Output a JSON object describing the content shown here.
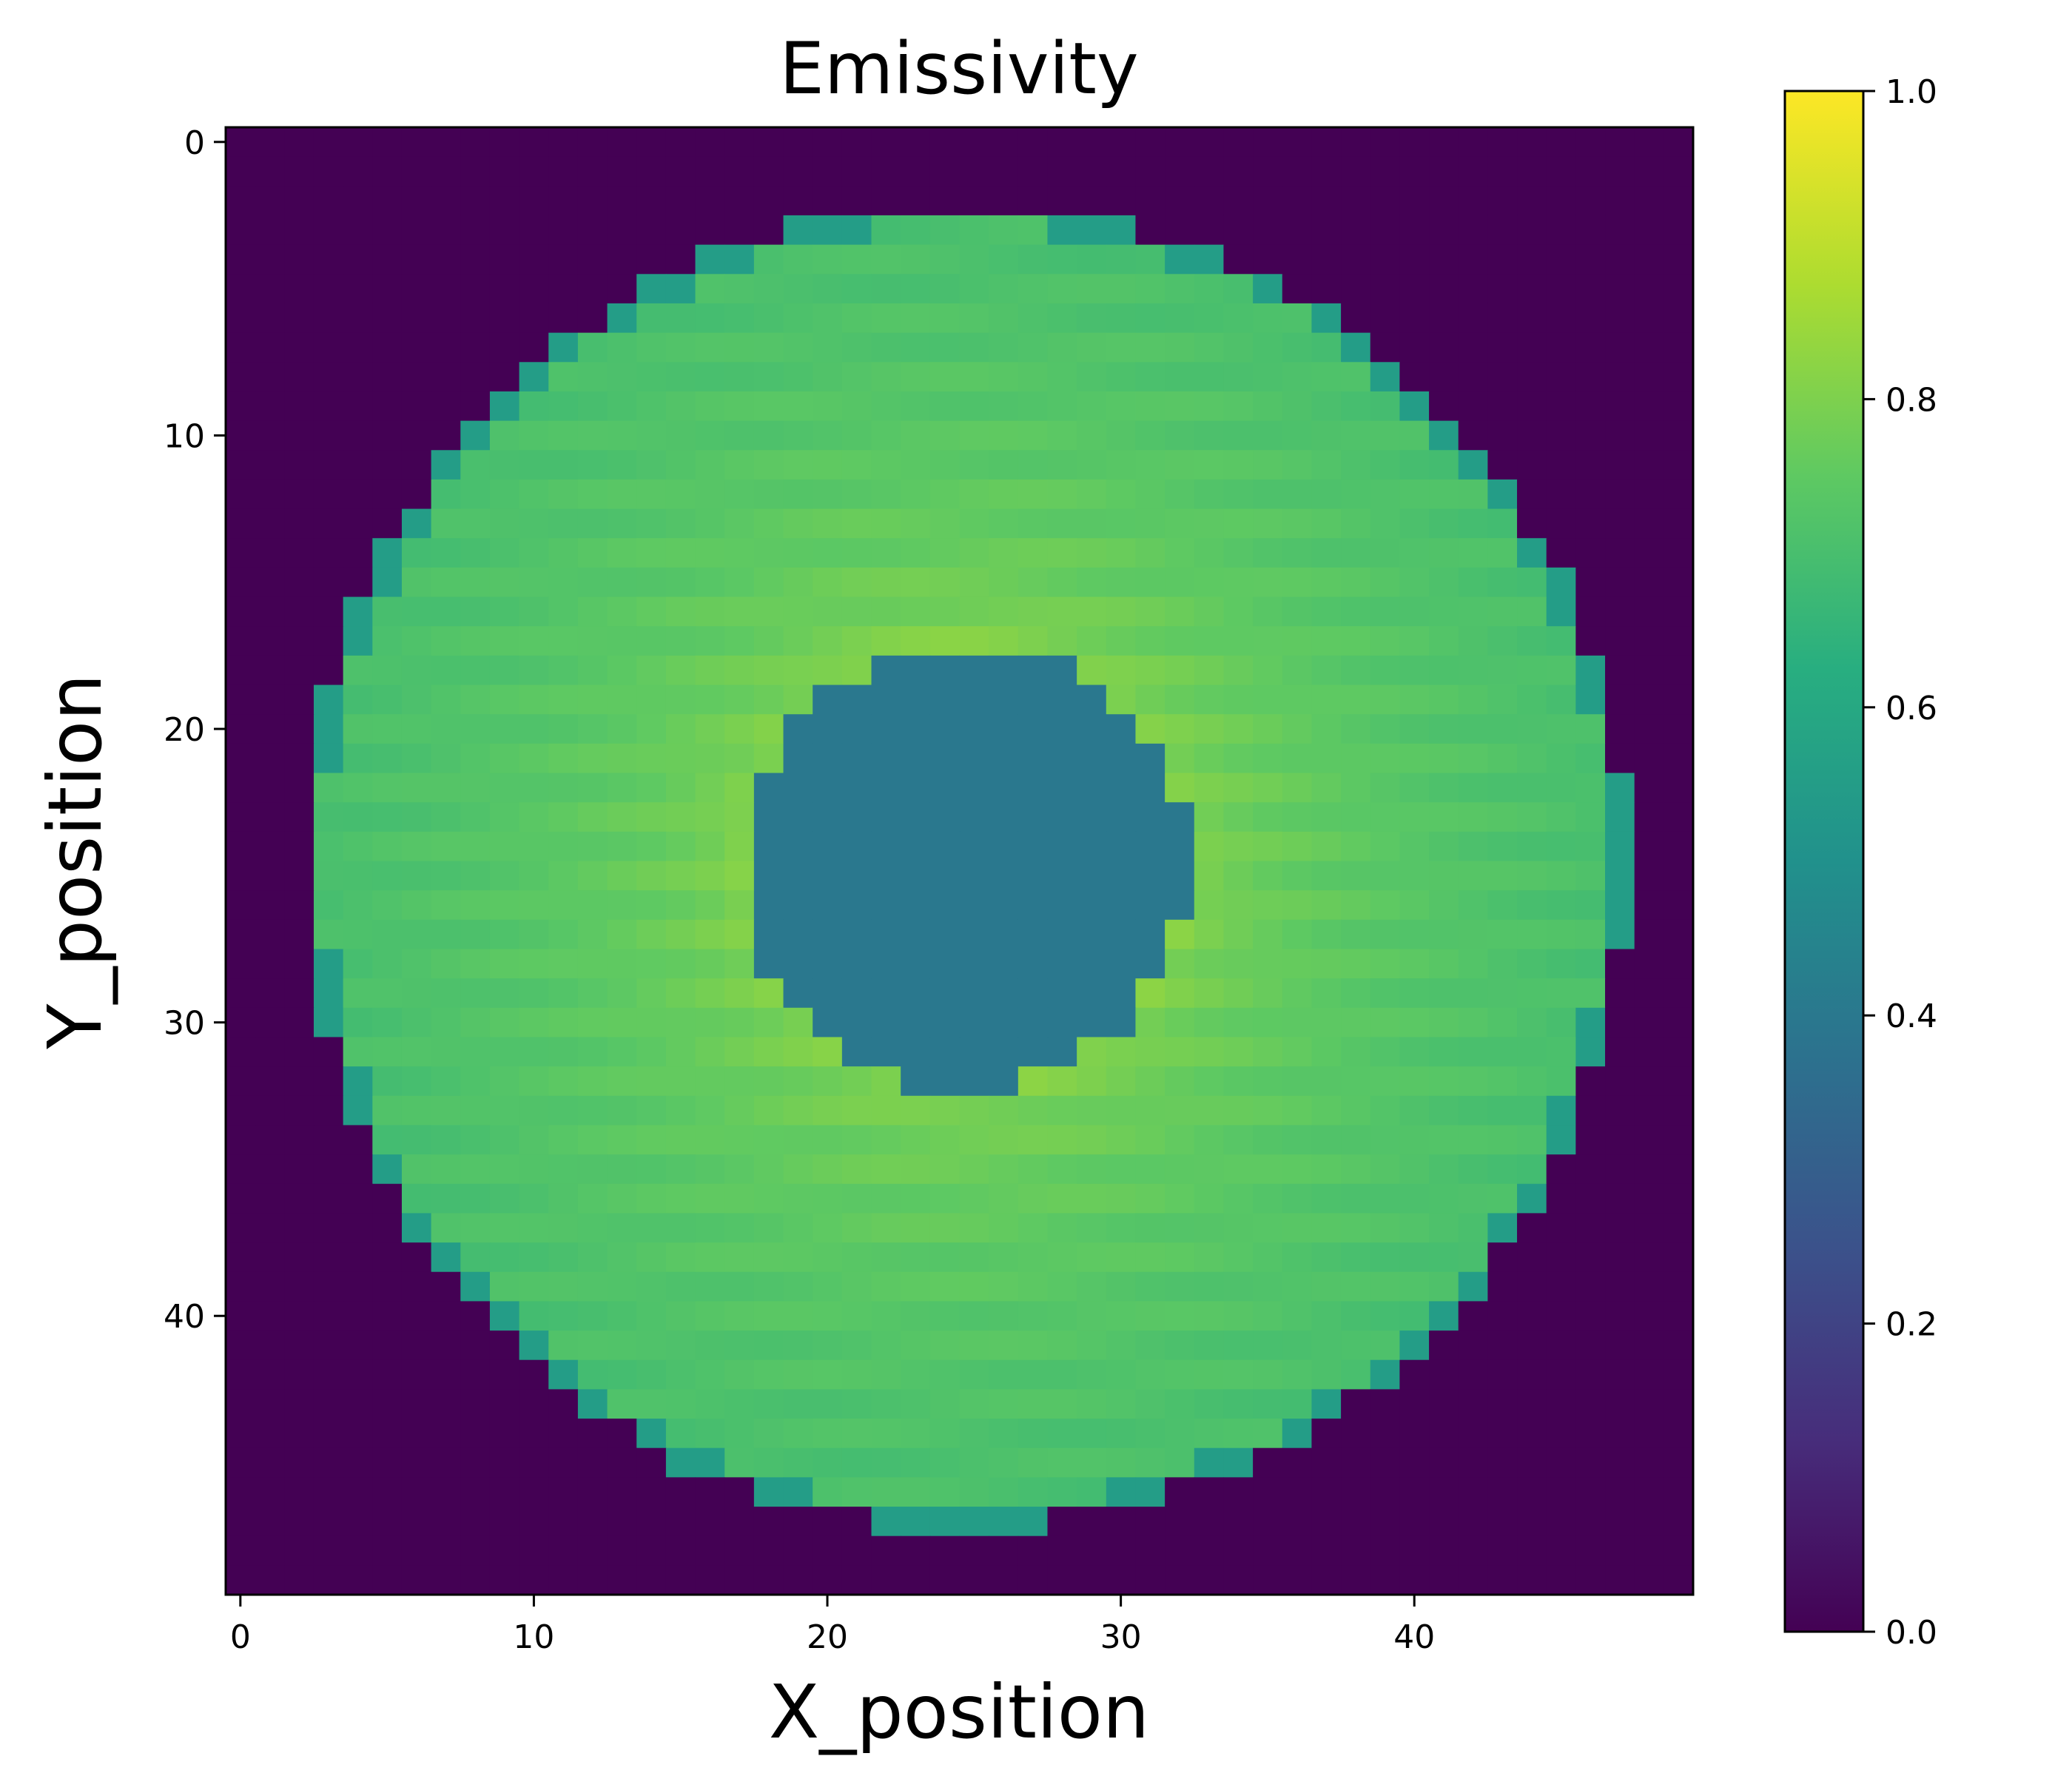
{
  "chart_data": {
    "type": "heatmap",
    "title": "Emissivity",
    "xlabel": "X_position",
    "ylabel": "Y_position",
    "grid": false,
    "legend": "colorbar-right",
    "nx": 50,
    "ny": 50,
    "xlim": [
      -0.5,
      49.5
    ],
    "ylim": [
      49.5,
      -0.5
    ],
    "x_ticks": [
      0,
      10,
      20,
      30,
      40
    ],
    "y_ticks": [
      0,
      10,
      20,
      30,
      40
    ],
    "colormap": "viridis",
    "colorbar": {
      "vmin": 0.0,
      "vmax": 1.0,
      "ticks": [
        0.0,
        0.2,
        0.4,
        0.6,
        0.8,
        1.0
      ],
      "tick_labels": [
        "0.0",
        "0.2",
        "0.4",
        "0.6",
        "0.8",
        "1.0"
      ]
    },
    "field": {
      "center": [
        25,
        25
      ],
      "outer_radius": 22.5,
      "inner_radius": 7.5,
      "background_value": 0.0,
      "inner_disk_value": 0.4,
      "ring_value_near_inner_edge": 0.82,
      "ring_value_near_outer_edge": 0.7,
      "edge_cell_value": 0.55
    }
  }
}
